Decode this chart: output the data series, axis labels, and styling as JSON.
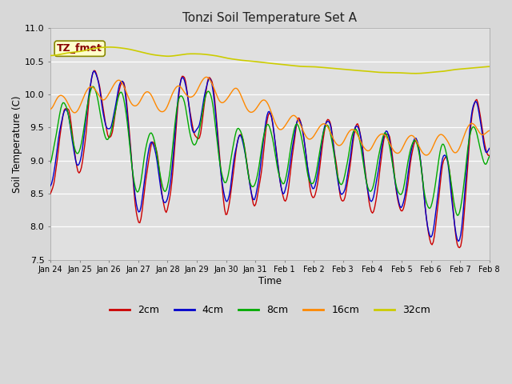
{
  "title": "Tonzi Soil Temperature Set A",
  "xlabel": "Time",
  "ylabel": "Soil Temperature (C)",
  "annotation": "TZ_fmet",
  "ylim": [
    7.5,
    11.0
  ],
  "yticks": [
    7.5,
    8.0,
    8.5,
    9.0,
    9.5,
    10.0,
    10.5,
    11.0
  ],
  "xtick_labels": [
    "Jan 24",
    "Jan 25",
    "Jan 26",
    "Jan 27",
    "Jan 28",
    "Jan 29",
    "Jan 30",
    "Jan 31",
    "Feb 1",
    "Feb 2",
    "Feb 3",
    "Feb 4",
    "Feb 5",
    "Feb 6",
    "Feb 7",
    "Feb 8"
  ],
  "colors": {
    "2cm": "#cc0000",
    "4cm": "#0000cc",
    "8cm": "#00aa00",
    "16cm": "#ff8800",
    "32cm": "#cccc00"
  },
  "legend_labels": [
    "2cm",
    "4cm",
    "8cm",
    "16cm",
    "32cm"
  ],
  "fig_facecolor": "#d8d8d8",
  "ax_facecolor": "#e0e0e0",
  "annotation_bg": "#ffffcc",
  "annotation_text_color": "#880000",
  "annotation_edge_color": "#888800"
}
